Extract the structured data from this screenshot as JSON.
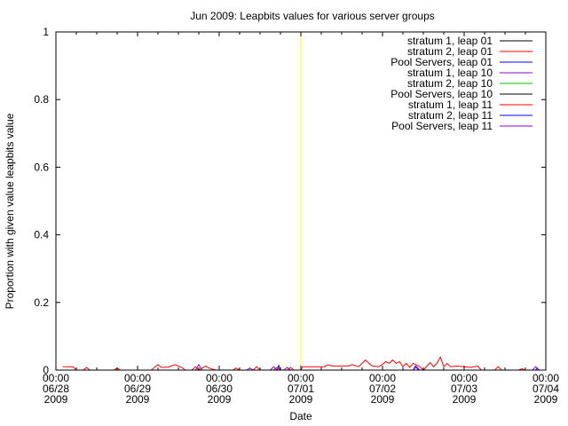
{
  "chart_data": {
    "type": "line",
    "title": "Jun 2009: Leapbits values for various server groups",
    "xlabel": "Date",
    "ylabel": "Proportion with given value leapbits value",
    "ylim": [
      0,
      1
    ],
    "xlim": [
      "2009-06-28 00:00",
      "2009-07-04 00:00"
    ],
    "x_ticks": [
      {
        "x": "2009-06-28 00:00",
        "lines": [
          "00:00",
          "06/28",
          "2009"
        ]
      },
      {
        "x": "2009-06-29 00:00",
        "lines": [
          "00:00",
          "06/29",
          "2009"
        ]
      },
      {
        "x": "2009-06-30 00:00",
        "lines": [
          "00:00",
          "06/30",
          "2009"
        ]
      },
      {
        "x": "2009-07-01 00:00",
        "lines": [
          "00:00",
          "07/01",
          "2009"
        ]
      },
      {
        "x": "2009-07-02 00:00",
        "lines": [
          "00:00",
          "07/02",
          "2009"
        ]
      },
      {
        "x": "2009-07-03 00:00",
        "lines": [
          "00:00",
          "07/03",
          "2009"
        ]
      },
      {
        "x": "2009-07-04 00:00",
        "lines": [
          "00:00",
          "07/04",
          "2009"
        ]
      }
    ],
    "y_ticks": [
      {
        "y": 0,
        "label": "0"
      },
      {
        "y": 0.2,
        "label": "0.2"
      },
      {
        "y": 0.4,
        "label": "0.4"
      },
      {
        "y": 0.6,
        "label": "0.6"
      },
      {
        "y": 0.8,
        "label": "0.8"
      },
      {
        "y": 1,
        "label": "1"
      }
    ],
    "grid": false,
    "legend_position": "top-right",
    "reference_line": {
      "x": "2009-07-01 00:00",
      "color": "#ffff00"
    },
    "series": [
      {
        "name": "stratum 1, leap 01",
        "color": "#000000",
        "points": []
      },
      {
        "name": "stratum 2, leap 01",
        "color": "#ff0000",
        "points": []
      },
      {
        "name": "Pool Servers, leap 01",
        "color": "#0000ff",
        "points": []
      },
      {
        "name": "stratum 1, leap 10",
        "color": "#9400d3",
        "points": []
      },
      {
        "name": "stratum 2, leap 10",
        "color": "#00c000",
        "points": []
      },
      {
        "name": "Pool Servers, leap 10",
        "color": "#000000",
        "points": []
      },
      {
        "name": "stratum 1, leap 11",
        "color": "#ff0000",
        "points": [
          [
            "2009-06-28 02:00",
            0.01
          ],
          [
            "2009-06-28 05:00",
            0.01
          ],
          [
            "2009-06-28 06:00",
            0.0
          ],
          [
            "2009-06-28 08:00",
            0.0
          ],
          [
            "2009-06-28 09:00",
            0.008
          ],
          [
            "2009-06-28 10:00",
            0.0
          ],
          [
            "2009-06-28 17:00",
            0.0
          ],
          [
            "2009-06-28 18:00",
            0.006
          ],
          [
            "2009-06-28 19:00",
            0.0
          ],
          [
            "2009-06-29 04:00",
            0.0
          ],
          [
            "2009-06-29 06:00",
            0.016
          ],
          [
            "2009-06-29 07:00",
            0.008
          ],
          [
            "2009-06-29 09:00",
            0.009
          ],
          [
            "2009-06-29 11:00",
            0.016
          ],
          [
            "2009-06-29 13:00",
            0.008
          ],
          [
            "2009-06-29 14:00",
            0.0
          ],
          [
            "2009-06-29 16:00",
            0.0
          ],
          [
            "2009-06-29 17:00",
            0.01
          ],
          [
            "2009-06-29 18:00",
            0.0
          ],
          [
            "2009-06-29 20:00",
            0.012
          ],
          [
            "2009-06-29 21:00",
            0.006
          ],
          [
            "2009-06-29 23:00",
            0.0
          ],
          [
            "2009-06-30 04:00",
            0.0
          ],
          [
            "2009-06-30 05:00",
            0.006
          ],
          [
            "2009-06-30 06:00",
            0.0
          ],
          [
            "2009-06-30 10:00",
            0.0
          ],
          [
            "2009-06-30 11:00",
            0.01
          ],
          [
            "2009-06-30 12:00",
            0.0
          ],
          [
            "2009-06-30 16:00",
            0.0
          ],
          [
            "2009-06-30 17:00",
            0.008
          ],
          [
            "2009-06-30 18:00",
            0.0
          ],
          [
            "2009-06-30 20:00",
            0.0
          ],
          [
            "2009-06-30 21:00",
            0.008
          ],
          [
            "2009-06-30 22:00",
            0.0
          ],
          [
            "2009-07-01 00:00",
            0.0
          ],
          [
            "2009-07-01 00:30",
            0.01
          ],
          [
            "2009-07-01 07:00",
            0.01
          ],
          [
            "2009-07-01 08:00",
            0.016
          ],
          [
            "2009-07-01 09:00",
            0.012
          ],
          [
            "2009-07-01 14:00",
            0.012
          ],
          [
            "2009-07-01 15:00",
            0.016
          ],
          [
            "2009-07-01 17:00",
            0.01
          ],
          [
            "2009-07-01 19:00",
            0.03
          ],
          [
            "2009-07-01 20:00",
            0.02
          ],
          [
            "2009-07-01 21:00",
            0.012
          ],
          [
            "2009-07-01 23:00",
            0.01
          ],
          [
            "2009-07-02 01:00",
            0.025
          ],
          [
            "2009-07-02 02:00",
            0.02
          ],
          [
            "2009-07-02 03:00",
            0.03
          ],
          [
            "2009-07-02 04:00",
            0.02
          ],
          [
            "2009-07-02 05:00",
            0.025
          ],
          [
            "2009-07-02 06:00",
            0.01
          ],
          [
            "2009-07-02 07:00",
            0.02
          ],
          [
            "2009-07-02 08:00",
            0.008
          ],
          [
            "2009-07-02 09:00",
            0.02
          ],
          [
            "2009-07-02 11:00",
            0.01
          ],
          [
            "2009-07-02 12:00",
            0.0
          ],
          [
            "2009-07-02 14:00",
            0.022
          ],
          [
            "2009-07-02 15:00",
            0.01
          ],
          [
            "2009-07-02 16:00",
            0.02
          ],
          [
            "2009-07-02 17:00",
            0.038
          ],
          [
            "2009-07-02 18:00",
            0.01
          ],
          [
            "2009-07-02 19:00",
            0.02
          ],
          [
            "2009-07-02 20:00",
            0.01
          ],
          [
            "2009-07-02 22:00",
            0.012
          ],
          [
            "2009-07-03 00:00",
            0.01
          ],
          [
            "2009-07-03 02:00",
            0.008
          ],
          [
            "2009-07-03 04:00",
            0.012
          ],
          [
            "2009-07-03 05:00",
            0.0
          ],
          [
            "2009-07-03 09:00",
            0.0
          ],
          [
            "2009-07-03 10:00",
            0.01
          ],
          [
            "2009-07-03 11:00",
            0.0
          ],
          [
            "2009-07-03 16:00",
            0.0
          ],
          [
            "2009-07-03 17:00",
            0.004
          ],
          [
            "2009-07-03 18:00",
            0.0
          ]
        ]
      },
      {
        "name": "stratum 2, leap 11",
        "color": "#0000ff",
        "points": [
          [
            "2009-06-30 17:00",
            0.0
          ],
          [
            "2009-06-30 17:30",
            0.014
          ],
          [
            "2009-06-30 18:00",
            0.0
          ],
          [
            "2009-07-02 09:00",
            0.0
          ],
          [
            "2009-07-02 09:40",
            0.012
          ],
          [
            "2009-07-02 10:30",
            0.0
          ],
          [
            "2009-07-03 21:00",
            0.0
          ],
          [
            "2009-07-03 21:30",
            0.006
          ],
          [
            "2009-07-03 22:00",
            0.0
          ]
        ]
      },
      {
        "name": "Pool Servers, leap 11",
        "color": "#9400d3",
        "points": [
          [
            "2009-06-29 17:00",
            0.0
          ],
          [
            "2009-06-29 18:00",
            0.016
          ],
          [
            "2009-06-29 19:00",
            0.0
          ],
          [
            "2009-06-30 08:00",
            0.0
          ],
          [
            "2009-06-30 09:00",
            0.006
          ],
          [
            "2009-06-30 10:00",
            0.0
          ],
          [
            "2009-06-30 15:00",
            0.0
          ],
          [
            "2009-06-30 16:00",
            0.01
          ],
          [
            "2009-06-30 17:00",
            0.0
          ],
          [
            "2009-06-30 19:00",
            0.0
          ],
          [
            "2009-06-30 20:00",
            0.008
          ],
          [
            "2009-06-30 21:00",
            0.0
          ],
          [
            "2009-07-02 09:00",
            0.0
          ],
          [
            "2009-07-02 10:00",
            0.01
          ],
          [
            "2009-07-02 11:00",
            0.0
          ],
          [
            "2009-07-03 20:00",
            0.0
          ],
          [
            "2009-07-03 21:00",
            0.01
          ],
          [
            "2009-07-03 22:00",
            0.0
          ]
        ]
      }
    ]
  }
}
